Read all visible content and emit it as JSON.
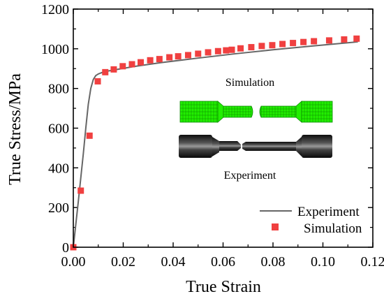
{
  "chart_data": {
    "type": "scatter",
    "xlabel": "True Strain",
    "ylabel": "True Stress/MPa",
    "xlim": [
      0,
      0.12
    ],
    "ylim": [
      0,
      1200
    ],
    "xticks": [
      "0.00",
      "0.02",
      "0.04",
      "0.06",
      "0.08",
      "0.10",
      "0.12"
    ],
    "yticks": [
      "0",
      "200",
      "400",
      "600",
      "800",
      "1000",
      "1200"
    ],
    "legend_position": "bottom-right",
    "series": [
      {
        "name": "Experiment",
        "kind": "line",
        "color": "#666666",
        "x": [
          0.0,
          0.002,
          0.004,
          0.005,
          0.006,
          0.007,
          0.008,
          0.009,
          0.01,
          0.011,
          0.012,
          0.014,
          0.018,
          0.025,
          0.035,
          0.05,
          0.065,
          0.08,
          0.095,
          0.114
        ],
        "y": [
          0,
          230,
          470,
          600,
          720,
          800,
          845,
          865,
          873,
          878,
          882,
          888,
          897,
          912,
          930,
          953,
          975,
          995,
          1013,
          1035
        ]
      },
      {
        "name": "Simulation",
        "kind": "marker",
        "color": "#f04040",
        "x": [
          0.0,
          0.003,
          0.0065,
          0.0098,
          0.0128,
          0.0162,
          0.0198,
          0.0235,
          0.027,
          0.0308,
          0.0345,
          0.0385,
          0.042,
          0.046,
          0.05,
          0.054,
          0.058,
          0.0612,
          0.0635,
          0.067,
          0.0713,
          0.0755,
          0.0797,
          0.0838,
          0.088,
          0.0922,
          0.0964,
          0.1025,
          0.1085,
          0.1135
        ],
        "y": [
          0,
          285,
          562,
          836,
          882,
          896,
          912,
          922,
          932,
          942,
          948,
          957,
          962,
          968,
          975,
          982,
          988,
          992,
          995,
          1002,
          1008,
          1014,
          1018,
          1024,
          1029,
          1034,
          1038,
          1042,
          1047,
          1051
        ]
      }
    ],
    "inset": {
      "top_label": "Simulation",
      "bottom_label": "Experiment",
      "mesh_color": "#22ee00",
      "specimen_color": "#1a1a1a"
    }
  }
}
